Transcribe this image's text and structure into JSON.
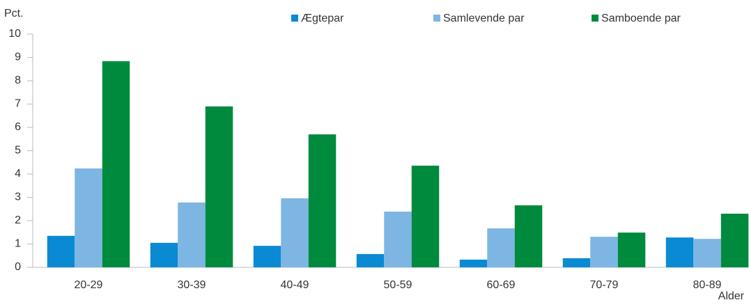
{
  "chart_data": {
    "type": "bar",
    "y_label": "Pct.",
    "x_label": "Alder",
    "categories": [
      "20-29",
      "30-39",
      "40-49",
      "50-59",
      "60-69",
      "70-79",
      "80-89"
    ],
    "series": [
      {
        "name": "Ægtepar",
        "color": "#0a8ad2",
        "values": [
          1.35,
          1.05,
          0.92,
          0.57,
          0.33,
          0.39,
          1.28
        ]
      },
      {
        "name": "Samlevende par",
        "color": "#7db6e3",
        "values": [
          4.24,
          2.78,
          2.96,
          2.39,
          1.67,
          1.31,
          1.22
        ]
      },
      {
        "name": "Samboende par",
        "color": "#008a3e",
        "values": [
          8.84,
          6.9,
          5.7,
          4.36,
          2.66,
          1.49,
          2.3
        ]
      }
    ],
    "ylim": [
      0,
      10
    ],
    "yticks": [
      0,
      1,
      2,
      3,
      4,
      5,
      6,
      7,
      8,
      9,
      10
    ]
  }
}
